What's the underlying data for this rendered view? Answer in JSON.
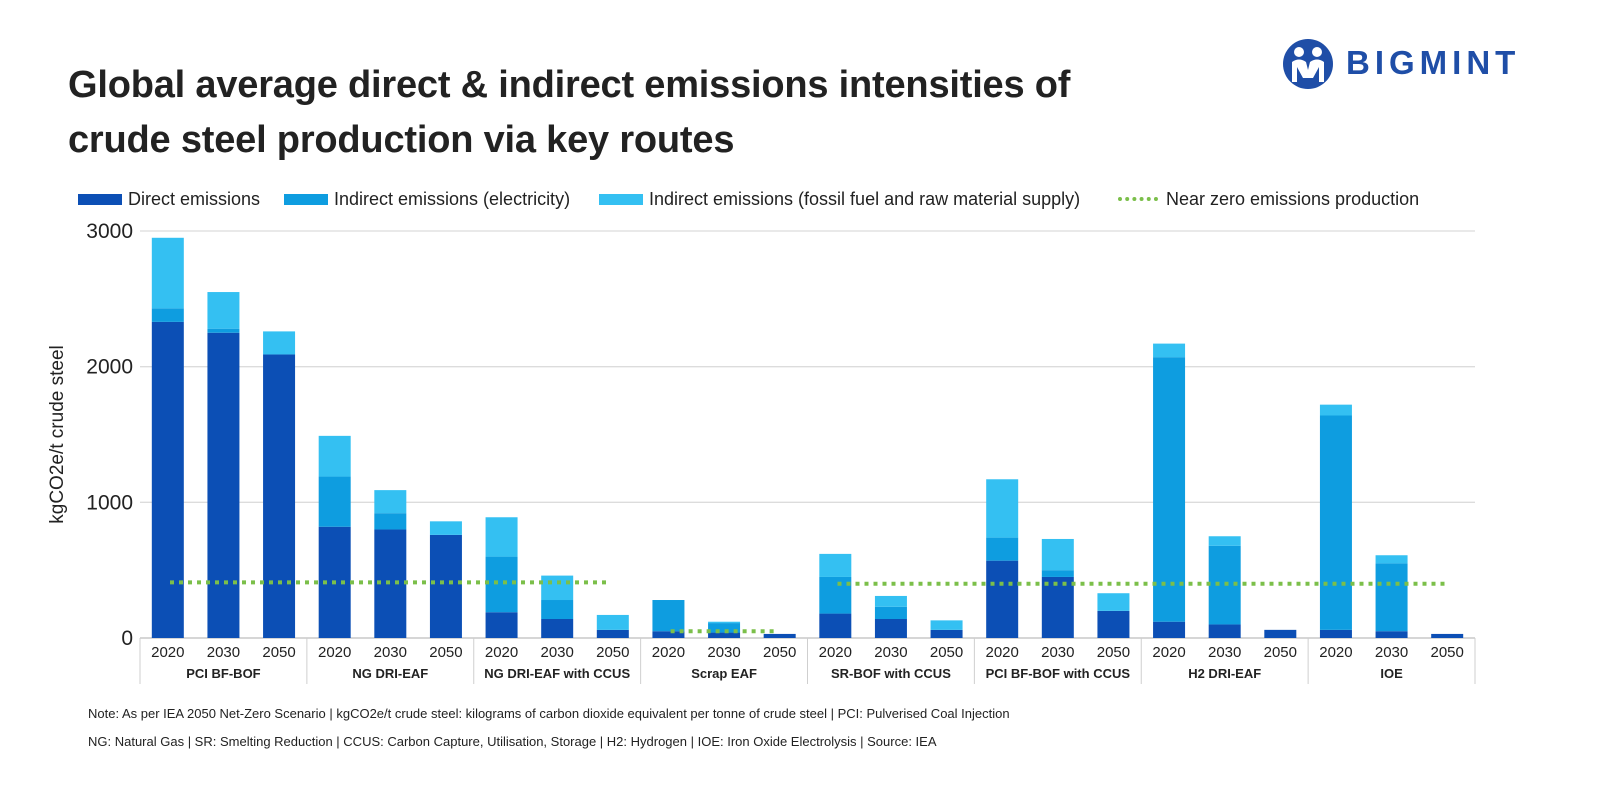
{
  "title_lines": [
    "Global average direct & indirect emissions intensities of",
    "crude steel production via key routes"
  ],
  "brand": {
    "name": "BIGMINT",
    "color": "#1f4ea7",
    "logo_icon": "bigmint-logo-icon"
  },
  "colors": {
    "direct": "#0c4fb5",
    "indirect_electricity": "#0e9de0",
    "indirect_fossil": "#34c0f2",
    "near_zero": "#7bbf4a"
  },
  "legend": [
    {
      "label": "Direct emissions",
      "key": "direct"
    },
    {
      "label": "Indirect emissions (electricity)",
      "key": "indirect_electricity"
    },
    {
      "label": "Indirect emissions (fossil fuel and raw material supply)",
      "key": "indirect_fossil"
    },
    {
      "label": "Near zero emissions production",
      "key": "near_zero"
    }
  ],
  "notes": [
    "Note: As per IEA 2050 Net-Zero Scenario | kgCO2e/t crude steel: kilograms of carbon dioxide equivalent per tonne of crude steel | PCI: Pulverised Coal Injection",
    "NG: Natural Gas | SR: Smelting Reduction | CCUS: Carbon Capture, Utilisation, Storage | H2: Hydrogen | IOE: Iron Oxide Electrolysis | Source: IEA"
  ],
  "chart_data": {
    "type": "bar",
    "stacked": true,
    "ylabel": "kgCO2e/t crude steel",
    "ylim": [
      0,
      3000
    ],
    "yticks": [
      0,
      1000,
      2000,
      3000
    ],
    "groups": [
      {
        "name": "PCI BF-BOF",
        "years": [
          "2020",
          "2030",
          "2050"
        ],
        "direct": [
          2330,
          2250,
          2090
        ],
        "indirect_electricity": [
          100,
          30,
          0
        ],
        "indirect_fossil": [
          520,
          270,
          170
        ],
        "near_zero_value": 410
      },
      {
        "name": "NG DRI-EAF",
        "years": [
          "2020",
          "2030",
          "2050"
        ],
        "direct": [
          820,
          800,
          760
        ],
        "indirect_electricity": [
          370,
          120,
          0
        ],
        "indirect_fossil": [
          300,
          170,
          100
        ],
        "near_zero_value": 410
      },
      {
        "name": "NG DRI-EAF with CCUS",
        "years": [
          "2020",
          "2030",
          "2050"
        ],
        "direct": [
          190,
          140,
          60
        ],
        "indirect_electricity": [
          410,
          140,
          0
        ],
        "indirect_fossil": [
          290,
          180,
          110
        ],
        "near_zero_value": 410
      },
      {
        "name": "Scrap EAF",
        "years": [
          "2020",
          "2030",
          "2050"
        ],
        "direct": [
          50,
          40,
          30
        ],
        "indirect_electricity": [
          230,
          70,
          0
        ],
        "indirect_fossil": [
          0,
          10,
          0
        ],
        "near_zero_value": 50
      },
      {
        "name": "SR-BOF with CCUS",
        "years": [
          "2020",
          "2030",
          "2050"
        ],
        "direct": [
          180,
          140,
          60
        ],
        "indirect_electricity": [
          270,
          90,
          0
        ],
        "indirect_fossil": [
          170,
          80,
          70
        ],
        "near_zero_value": 400
      },
      {
        "name": "PCI BF-BOF with CCUS",
        "years": [
          "2020",
          "2030",
          "2050"
        ],
        "direct": [
          570,
          450,
          200
        ],
        "indirect_electricity": [
          170,
          50,
          0
        ],
        "indirect_fossil": [
          430,
          230,
          130
        ],
        "near_zero_value": 400
      },
      {
        "name": "H2 DRI-EAF",
        "years": [
          "2020",
          "2030",
          "2050"
        ],
        "direct": [
          120,
          100,
          60
        ],
        "indirect_electricity": [
          1950,
          580,
          0
        ],
        "indirect_fossil": [
          100,
          70,
          0
        ],
        "near_zero_value": 400
      },
      {
        "name": "IOE",
        "years": [
          "2020",
          "2030",
          "2050"
        ],
        "direct": [
          60,
          50,
          30
        ],
        "indirect_electricity": [
          1580,
          500,
          0
        ],
        "indirect_fossil": [
          80,
          60,
          0
        ],
        "near_zero_value": 400
      }
    ]
  }
}
